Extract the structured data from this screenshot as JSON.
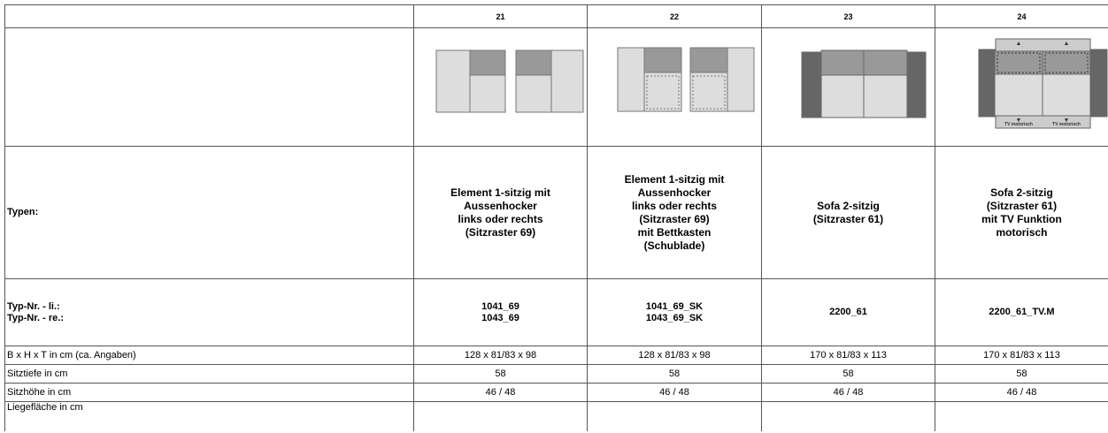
{
  "header": [
    "21",
    "22",
    "23",
    "24"
  ],
  "types_label": "Typen:",
  "types": [
    [
      "Element 1-sitzig mit",
      "Aussenhocker",
      "links oder rechts",
      "(Sitzraster 69)"
    ],
    [
      "Element 1-sitzig mit",
      "Aussenhocker",
      "links oder rechts",
      "(Sitzraster 69)",
      "mit Bettkasten",
      "(Schublade)"
    ],
    [
      "Sofa 2-sitzig",
      "(Sitzraster 61)"
    ],
    [
      "Sofa 2-sitzig",
      "(Sitzraster 61)",
      "mit TV Funktion",
      "motorisch"
    ]
  ],
  "typnr_labels": [
    "Typ-Nr. - li.:",
    "Typ-Nr. - re.:"
  ],
  "typnr": [
    [
      "1041_69",
      "1043_69"
    ],
    [
      "1041_69_SK",
      "1043_69_SK"
    ],
    [
      "2200_61"
    ],
    [
      "2200_61_TV.M"
    ]
  ],
  "tv_labels": [
    "TV motorisch",
    "TV motorisch"
  ],
  "specs": [
    {
      "label": "B x H x T in cm (ca. Angaben)",
      "values": [
        "128 x 81/83 x 98",
        "128 x 81/83 x 98",
        "170 x 81/83 x 113",
        "170 x 81/83 x 113"
      ]
    },
    {
      "label": "Sitztiefe in cm",
      "values": [
        "58",
        "58",
        "58",
        "58"
      ]
    },
    {
      "label": "Sitzhöhe in cm",
      "values": [
        "46 / 48",
        "46 / 48",
        "46 / 48",
        "46 / 48"
      ]
    },
    {
      "label": "Liegefläche in cm"
    }
  ]
}
